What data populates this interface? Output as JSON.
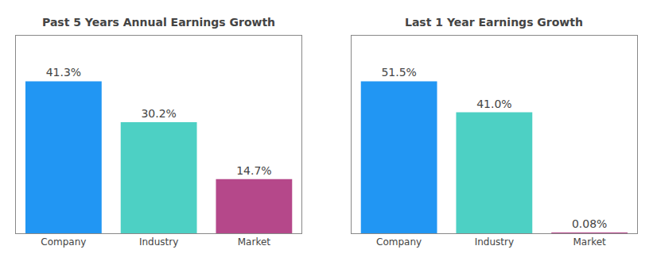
{
  "chart_data": [
    {
      "type": "bar",
      "title": "Past 5 Years Annual Earnings Growth",
      "categories": [
        "Company",
        "Industry",
        "Market"
      ],
      "values": [
        41.3,
        30.2,
        14.7
      ],
      "value_labels": [
        "41.3%",
        "30.2%",
        "14.7%"
      ],
      "colors": [
        "#2196f3",
        "#4dd0c4",
        "#b5488a"
      ],
      "ylim": [
        0,
        53.69
      ],
      "data_labels": true,
      "tick_labels": "x",
      "grid": false
    },
    {
      "type": "bar",
      "title": "Last 1 Year Earnings Growth",
      "categories": [
        "Company",
        "Industry",
        "Market"
      ],
      "values": [
        51.5,
        41.0,
        0.08
      ],
      "value_labels": [
        "51.5%",
        "41.0%",
        "0.08%"
      ],
      "colors": [
        "#2196f3",
        "#4dd0c4",
        "#b5488a"
      ],
      "ylim": [
        0,
        66.95
      ],
      "data_labels": true,
      "tick_labels": "x",
      "grid": false
    }
  ]
}
